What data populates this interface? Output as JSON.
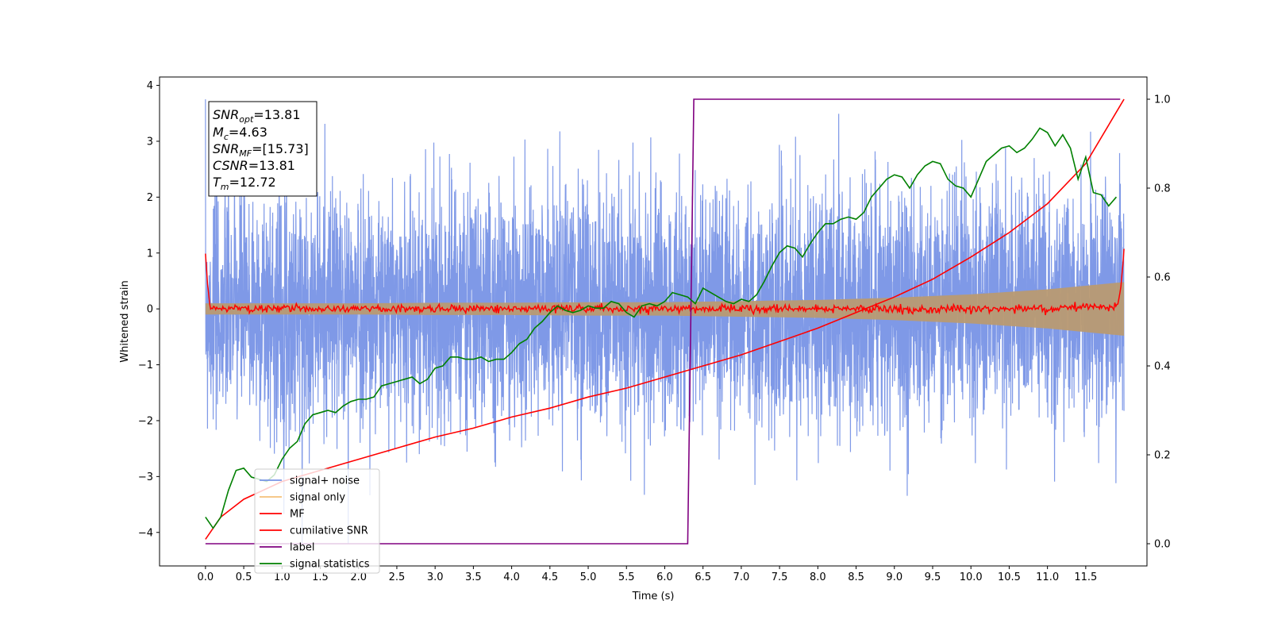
{
  "chart_data": {
    "type": "line",
    "xlabel": "Time (s)",
    "ylabel": "Whitened strain",
    "xlim": [
      -0.6,
      12.3
    ],
    "ylim": [
      -4.6,
      4.15
    ],
    "y2lim": [
      -0.05,
      1.05
    ],
    "x_ticks": [
      0.0,
      0.5,
      1.0,
      1.5,
      2.0,
      2.5,
      3.0,
      3.5,
      4.0,
      4.5,
      5.0,
      5.5,
      6.0,
      6.5,
      7.0,
      7.5,
      8.0,
      8.5,
      9.0,
      9.5,
      10.0,
      10.5,
      11.0,
      11.5
    ],
    "x_tick_labels": [
      "0.0",
      "0.5",
      "1.0",
      "1.5",
      "2.0",
      "2.5",
      "3.0",
      "3.5",
      "4.0",
      "4.5",
      "5.0",
      "5.5",
      "6.0",
      "6.5",
      "7.0",
      "7.5",
      "8.0",
      "8.5",
      "9.0",
      "9.5",
      "10.0",
      "10.5",
      "11.0",
      "11.5"
    ],
    "y_ticks": [
      -4,
      -3,
      -2,
      -1,
      0,
      1,
      2,
      3,
      4
    ],
    "y_tick_labels": [
      "−4",
      "−3",
      "−2",
      "−1",
      "0",
      "1",
      "2",
      "3",
      "4"
    ],
    "y2_ticks": [
      0.0,
      0.2,
      0.4,
      0.6,
      0.8,
      1.0
    ],
    "y2_tick_labels": [
      "0.0",
      "0.2",
      "0.4",
      "0.6",
      "0.8",
      "1.0"
    ],
    "grid": false,
    "legend_placement": "lower-left",
    "annotation": {
      "lines": [
        {
          "base": "SNR",
          "sub": "opt",
          "rest": "=13.81"
        },
        {
          "base": "M",
          "sub": "c",
          "rest": "=4.63"
        },
        {
          "base": "SNR",
          "sub": "MF",
          "rest": "=[15.73]"
        },
        {
          "base": "CSNR",
          "sub": "",
          "rest": "=13.81"
        },
        {
          "base": "T",
          "sub": "m",
          "rest": "=12.72"
        }
      ]
    },
    "series": [
      {
        "name": "signal+ noise",
        "color": "#7894e6",
        "axis": "left",
        "description_type": "noise_band",
        "x": [
          0,
          12
        ],
        "envelope_upper": [
          2.8,
          2.9
        ],
        "envelope_lower": [
          -2.8,
          -2.9
        ],
        "peak_high": 3.75,
        "peak_low": -4.2
      },
      {
        "name": "signal only",
        "color": "#f5c07a",
        "axis": "left",
        "x": [
          0.0,
          1.0,
          2.0,
          3.0,
          4.0,
          5.0,
          6.0,
          7.0,
          8.0,
          9.0,
          10.0,
          11.0,
          12.0
        ],
        "amplitude": [
          0.1,
          0.1,
          0.1,
          0.11,
          0.11,
          0.12,
          0.12,
          0.14,
          0.16,
          0.2,
          0.26,
          0.35,
          0.48
        ]
      },
      {
        "name": "MF",
        "color": "#ff0000",
        "axis": "left",
        "x": [
          0.0,
          0.05,
          0.1,
          0.5,
          1.0,
          2.0,
          3.0,
          4.0,
          5.0,
          6.0,
          7.0,
          8.0,
          9.0,
          10.0,
          11.0,
          11.9,
          11.95,
          12.0
        ],
        "y": [
          1.0,
          0.05,
          0.02,
          0.0,
          0.0,
          0.0,
          0.0,
          0.0,
          0.0,
          0.0,
          0.0,
          0.0,
          0.0,
          0.0,
          0.0,
          0.05,
          0.3,
          1.0
        ]
      },
      {
        "name": "cumilative SNR",
        "color": "#ff0000",
        "axis": "right",
        "x": [
          0.0,
          0.2,
          0.5,
          1.0,
          1.5,
          2.0,
          2.5,
          3.0,
          3.5,
          4.0,
          4.5,
          5.0,
          5.5,
          6.0,
          6.5,
          7.0,
          7.5,
          8.0,
          8.5,
          9.0,
          9.5,
          10.0,
          10.5,
          11.0,
          11.5,
          12.0
        ],
        "y": [
          0.01,
          0.06,
          0.1,
          0.14,
          0.165,
          0.19,
          0.215,
          0.24,
          0.26,
          0.285,
          0.305,
          0.33,
          0.35,
          0.375,
          0.4,
          0.425,
          0.455,
          0.485,
          0.52,
          0.555,
          0.595,
          0.645,
          0.7,
          0.765,
          0.855,
          1.0
        ]
      },
      {
        "name": "label",
        "color": "#800080",
        "axis": "right",
        "x": [
          0.0,
          6.3,
          6.38,
          11.95
        ],
        "y": [
          0.0,
          0.0,
          1.0,
          1.0
        ]
      },
      {
        "name": "signal statistics",
        "color": "#008000",
        "axis": "right",
        "x": [
          0.0,
          0.1,
          0.2,
          0.3,
          0.4,
          0.5,
          0.6,
          0.7,
          0.8,
          0.9,
          1.0,
          1.1,
          1.2,
          1.3,
          1.4,
          1.5,
          1.6,
          1.7,
          1.8,
          1.9,
          2.0,
          2.1,
          2.2,
          2.3,
          2.4,
          2.5,
          2.6,
          2.7,
          2.8,
          2.9,
          3.0,
          3.1,
          3.2,
          3.3,
          3.4,
          3.5,
          3.6,
          3.7,
          3.8,
          3.9,
          4.0,
          4.1,
          4.2,
          4.3,
          4.4,
          4.5,
          4.6,
          4.7,
          4.8,
          4.9,
          5.0,
          5.1,
          5.2,
          5.3,
          5.4,
          5.5,
          5.6,
          5.7,
          5.8,
          5.9,
          6.0,
          6.1,
          6.2,
          6.3,
          6.4,
          6.5,
          6.6,
          6.7,
          6.8,
          6.9,
          7.0,
          7.1,
          7.2,
          7.3,
          7.4,
          7.5,
          7.6,
          7.7,
          7.8,
          7.9,
          8.0,
          8.1,
          8.2,
          8.3,
          8.4,
          8.5,
          8.6,
          8.7,
          8.8,
          8.9,
          9.0,
          9.1,
          9.2,
          9.3,
          9.4,
          9.5,
          9.6,
          9.7,
          9.8,
          9.9,
          10.0,
          10.1,
          10.2,
          10.3,
          10.4,
          10.5,
          10.6,
          10.7,
          10.8,
          10.9,
          11.0,
          11.1,
          11.2,
          11.3,
          11.4,
          11.5,
          11.6,
          11.7,
          11.8,
          11.9
        ],
        "y": [
          0.06,
          0.035,
          0.06,
          0.12,
          0.165,
          0.17,
          0.15,
          0.145,
          0.14,
          0.155,
          0.19,
          0.215,
          0.23,
          0.27,
          0.29,
          0.295,
          0.3,
          0.295,
          0.31,
          0.32,
          0.325,
          0.325,
          0.33,
          0.355,
          0.36,
          0.365,
          0.37,
          0.375,
          0.36,
          0.37,
          0.395,
          0.4,
          0.42,
          0.42,
          0.415,
          0.415,
          0.42,
          0.41,
          0.415,
          0.415,
          0.43,
          0.45,
          0.46,
          0.485,
          0.5,
          0.52,
          0.535,
          0.525,
          0.52,
          0.525,
          0.535,
          0.53,
          0.53,
          0.545,
          0.54,
          0.52,
          0.51,
          0.535,
          0.54,
          0.535,
          0.545,
          0.565,
          0.56,
          0.555,
          0.54,
          0.575,
          0.565,
          0.555,
          0.545,
          0.54,
          0.55,
          0.545,
          0.56,
          0.59,
          0.625,
          0.655,
          0.67,
          0.665,
          0.645,
          0.675,
          0.7,
          0.72,
          0.72,
          0.73,
          0.735,
          0.73,
          0.745,
          0.78,
          0.8,
          0.82,
          0.83,
          0.825,
          0.8,
          0.83,
          0.85,
          0.86,
          0.855,
          0.82,
          0.805,
          0.8,
          0.78,
          0.82,
          0.86,
          0.875,
          0.89,
          0.895,
          0.88,
          0.89,
          0.91,
          0.935,
          0.925,
          0.895,
          0.92,
          0.89,
          0.82,
          0.87,
          0.79,
          0.785,
          0.76,
          0.78
        ]
      }
    ]
  }
}
